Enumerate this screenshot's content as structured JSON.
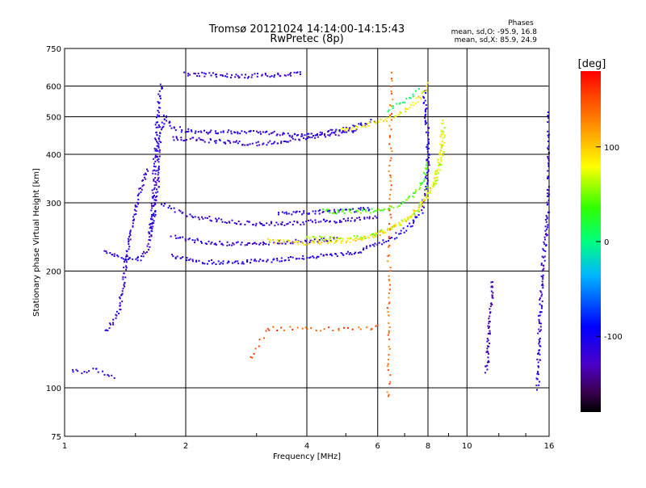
{
  "chart_data": {
    "type": "scatter",
    "title": "Tromsø 20121024 14:14:00-14:15:43",
    "subtitle": "RwPretec (8p)",
    "xlabel": "Frequency [MHz]",
    "ylabel": "Stationary phase Virtual Height [km]",
    "x_scale": "log",
    "y_scale": "log",
    "xlim": [
      1,
      16
    ],
    "ylim": [
      75,
      750
    ],
    "xticks": [
      1,
      2,
      4,
      6,
      8,
      10,
      16
    ],
    "yticks": [
      75,
      100,
      200,
      300,
      400,
      500,
      600,
      750
    ],
    "grid": true,
    "phase_stats": {
      "heading": "Phases",
      "line_o": "mean, sd,O: -95.9, 16.8",
      "line_x": "mean, sd,X:  85.9, 24.9"
    },
    "colorbar": {
      "label": "[deg]",
      "range": [
        -180,
        180
      ],
      "ticks": [
        {
          "value": 100,
          "label": "100"
        },
        {
          "value": 0,
          "label": "0"
        },
        {
          "value": -100,
          "label": "-100"
        }
      ]
    },
    "traces": [
      {
        "phase": -120,
        "density": 1.0,
        "points": [
          [
            1.26,
            140
          ],
          [
            1.32,
            148
          ],
          [
            1.37,
            160
          ],
          [
            1.4,
            185
          ],
          [
            1.42,
            210
          ],
          [
            1.45,
            240
          ],
          [
            1.48,
            270
          ],
          [
            1.5,
            290
          ],
          [
            1.52,
            310
          ],
          [
            1.55,
            330
          ],
          [
            1.58,
            345
          ],
          [
            1.6,
            360
          ],
          [
            1.62,
            370
          ]
        ]
      },
      {
        "phase": -115,
        "density": 1.0,
        "points": [
          [
            1.25,
            225
          ],
          [
            1.35,
            218
          ],
          [
            1.45,
            214
          ],
          [
            1.55,
            215
          ],
          [
            1.62,
            230
          ],
          [
            1.66,
            300
          ],
          [
            1.68,
            400
          ],
          [
            1.7,
            480
          ],
          [
            1.72,
            560
          ],
          [
            1.74,
            610
          ]
        ]
      },
      {
        "phase": -110,
        "density": 1.0,
        "points": [
          [
            1.63,
            250
          ],
          [
            1.66,
            270
          ],
          [
            1.7,
            320
          ],
          [
            1.72,
            420
          ],
          [
            1.74,
            470
          ],
          [
            1.78,
            500
          ]
        ]
      },
      {
        "phase": -110,
        "density": 1.0,
        "points": [
          [
            1.78,
            505
          ],
          [
            1.85,
            470
          ],
          [
            2.0,
            460
          ],
          [
            2.4,
            455
          ],
          [
            2.8,
            458
          ],
          [
            3.2,
            455
          ],
          [
            3.6,
            450
          ],
          [
            4.0,
            450
          ],
          [
            4.4,
            455
          ],
          [
            4.8,
            460
          ],
          [
            5.2,
            470
          ],
          [
            5.6,
            480
          ],
          [
            5.9,
            490
          ]
        ]
      },
      {
        "phase": -120,
        "density": 1.0,
        "points": [
          [
            1.85,
            440
          ],
          [
            2.2,
            435
          ],
          [
            2.6,
            430
          ],
          [
            3.0,
            425
          ],
          [
            3.4,
            430
          ],
          [
            3.8,
            440
          ],
          [
            4.2,
            445
          ],
          [
            4.6,
            450
          ],
          [
            5.0,
            455
          ],
          [
            5.4,
            460
          ]
        ]
      },
      {
        "phase": -115,
        "density": 1.0,
        "points": [
          [
            2.0,
            645
          ],
          [
            2.4,
            640
          ],
          [
            2.8,
            636
          ],
          [
            3.2,
            640
          ],
          [
            3.6,
            642
          ],
          [
            3.9,
            645
          ]
        ]
      },
      {
        "phase": -110,
        "density": 1.0,
        "points": [
          [
            1.85,
            220
          ],
          [
            2.1,
            212
          ],
          [
            2.5,
            210
          ],
          [
            3.0,
            212
          ],
          [
            3.6,
            215
          ],
          [
            4.2,
            218
          ],
          [
            4.8,
            220
          ],
          [
            5.4,
            225
          ],
          [
            6.0,
            235
          ],
          [
            6.6,
            245
          ],
          [
            7.2,
            260
          ],
          [
            7.7,
            285
          ],
          [
            7.9,
            320
          ],
          [
            8.0,
            380
          ],
          [
            8.0,
            450
          ],
          [
            7.9,
            520
          ],
          [
            7.8,
            590
          ]
        ]
      },
      {
        "phase": -115,
        "density": 1.0,
        "points": [
          [
            1.85,
            245
          ],
          [
            2.2,
            238
          ],
          [
            2.6,
            235
          ],
          [
            3.0,
            236
          ],
          [
            3.6,
            238
          ],
          [
            4.2,
            240
          ],
          [
            4.8,
            242
          ]
        ]
      },
      {
        "phase": -120,
        "density": 1.0,
        "points": [
          [
            2.2,
            275
          ],
          [
            2.6,
            268
          ],
          [
            3.0,
            265
          ],
          [
            3.6,
            265
          ],
          [
            4.2,
            268
          ],
          [
            4.8,
            270
          ],
          [
            5.4,
            272
          ],
          [
            6.0,
            275
          ]
        ]
      },
      {
        "phase": -110,
        "density": 1.0,
        "points": [
          [
            3.4,
            283
          ],
          [
            4.0,
            283
          ],
          [
            4.6,
            285
          ],
          [
            5.2,
            287
          ],
          [
            5.8,
            290
          ]
        ]
      },
      {
        "phase": -115,
        "density": 0.8,
        "points": [
          [
            1.75,
            300
          ],
          [
            1.85,
            290
          ],
          [
            2.0,
            280
          ],
          [
            2.2,
            270
          ]
        ]
      },
      {
        "phase": -118,
        "density": 0.6,
        "points": [
          [
            1.05,
            110
          ],
          [
            1.12,
            110
          ],
          [
            1.2,
            112
          ],
          [
            1.28,
            108
          ],
          [
            1.33,
            106
          ]
        ]
      },
      {
        "phase": 60,
        "density": 1.0,
        "points": [
          [
            4.0,
            245
          ],
          [
            4.8,
            242
          ],
          [
            5.6,
            245
          ],
          [
            6.4,
            255
          ],
          [
            7.0,
            270
          ],
          [
            7.5,
            285
          ],
          [
            7.8,
            305
          ],
          [
            8.0,
            330
          ]
        ]
      },
      {
        "phase": 90,
        "density": 1.0,
        "points": [
          [
            3.2,
            240
          ],
          [
            3.6,
            238
          ],
          [
            4.0,
            236
          ],
          [
            4.6,
            238
          ],
          [
            5.2,
            240
          ],
          [
            5.8,
            246
          ],
          [
            6.4,
            255
          ],
          [
            7.0,
            268
          ],
          [
            7.6,
            290
          ],
          [
            8.1,
            320
          ],
          [
            8.4,
            360
          ],
          [
            8.6,
            400
          ],
          [
            8.7,
            460
          ]
        ]
      },
      {
        "phase": 40,
        "density": 1.0,
        "points": [
          [
            4.4,
            285
          ],
          [
            5.0,
            285
          ],
          [
            5.6,
            285
          ],
          [
            6.2,
            288
          ],
          [
            6.8,
            295
          ],
          [
            7.3,
            310
          ],
          [
            7.7,
            335
          ],
          [
            8.0,
            380
          ]
        ]
      },
      {
        "phase": 85,
        "density": 1.0,
        "points": [
          [
            4.8,
            460
          ],
          [
            5.2,
            465
          ],
          [
            5.6,
            475
          ],
          [
            6.2,
            490
          ],
          [
            6.8,
            510
          ],
          [
            7.4,
            540
          ],
          [
            7.8,
            580
          ],
          [
            8.1,
            610
          ]
        ]
      },
      {
        "phase": 70,
        "density": 1.0,
        "points": [
          [
            8.3,
            330
          ],
          [
            8.5,
            360
          ],
          [
            8.7,
            400
          ],
          [
            8.75,
            440
          ],
          [
            8.7,
            490
          ]
        ]
      },
      {
        "phase": 10,
        "density": 0.6,
        "points": [
          [
            6.4,
            520
          ],
          [
            6.8,
            540
          ],
          [
            7.2,
            560
          ],
          [
            7.6,
            590
          ]
        ]
      },
      {
        "phase": -120,
        "density": 1.0,
        "points": [
          [
            15.0,
            100
          ],
          [
            15.2,
            155
          ],
          [
            15.4,
            200
          ],
          [
            15.6,
            230
          ],
          [
            15.8,
            260
          ],
          [
            16.0,
            330
          ],
          [
            16.0,
            380
          ],
          [
            16.0,
            530
          ]
        ]
      },
      {
        "phase": -130,
        "density": 1.0,
        "points": [
          [
            11.2,
            110
          ],
          [
            11.4,
            150
          ],
          [
            11.6,
            190
          ]
        ]
      },
      {
        "phase": 140,
        "density": 0.4,
        "points": [
          [
            6.4,
            96
          ],
          [
            6.4,
            140
          ],
          [
            6.4,
            165
          ],
          [
            6.4,
            190
          ],
          [
            6.5,
            650
          ]
        ]
      },
      {
        "phase": 150,
        "density": 0.4,
        "points": [
          [
            2.9,
            120
          ],
          [
            3.2,
            142
          ],
          [
            4.0,
            142
          ],
          [
            4.8,
            142
          ],
          [
            5.8,
            142
          ],
          [
            6.0,
            145
          ]
        ]
      }
    ]
  }
}
